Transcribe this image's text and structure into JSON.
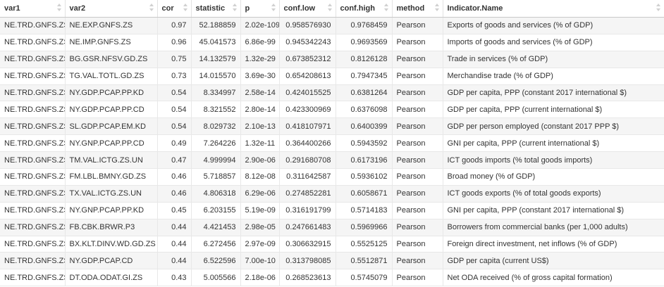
{
  "table": {
    "headers": [
      "var1",
      "var2",
      "cor",
      "statistic",
      "p",
      "conf.low",
      "conf.high",
      "method",
      "Indicator.Name"
    ],
    "rows": [
      [
        "NE.TRD.GNFS.ZS",
        "NE.EXP.GNFS.ZS",
        "0.97",
        "52.188859",
        "2.02e-109",
        "0.958576930",
        "0.9768459",
        "Pearson",
        "Exports of goods and services (% of GDP)"
      ],
      [
        "NE.TRD.GNFS.ZS",
        "NE.IMP.GNFS.ZS",
        "0.96",
        "45.041573",
        "6.86e-99",
        "0.945342243",
        "0.9693569",
        "Pearson",
        "Imports of goods and services (% of GDP)"
      ],
      [
        "NE.TRD.GNFS.ZS",
        "BG.GSR.NFSV.GD.ZS",
        "0.75",
        "14.132579",
        "1.32e-29",
        "0.673852312",
        "0.8126128",
        "Pearson",
        "Trade in services (% of GDP)"
      ],
      [
        "NE.TRD.GNFS.ZS",
        "TG.VAL.TOTL.GD.ZS",
        "0.73",
        "14.015570",
        "3.69e-30",
        "0.654208613",
        "0.7947345",
        "Pearson",
        "Merchandise trade (% of GDP)"
      ],
      [
        "NE.TRD.GNFS.ZS",
        "NY.GDP.PCAP.PP.KD",
        "0.54",
        "8.334997",
        "2.58e-14",
        "0.424015525",
        "0.6381264",
        "Pearson",
        "GDP per capita, PPP (constant 2017 international $)"
      ],
      [
        "NE.TRD.GNFS.ZS",
        "NY.GDP.PCAP.PP.CD",
        "0.54",
        "8.321552",
        "2.80e-14",
        "0.423300969",
        "0.6376098",
        "Pearson",
        "GDP per capita, PPP (current international $)"
      ],
      [
        "NE.TRD.GNFS.ZS",
        "SL.GDP.PCAP.EM.KD",
        "0.54",
        "8.029732",
        "2.10e-13",
        "0.418107971",
        "0.6400399",
        "Pearson",
        "GDP per person employed (constant 2017 PPP $)"
      ],
      [
        "NE.TRD.GNFS.ZS",
        "NY.GNP.PCAP.PP.CD",
        "0.49",
        "7.264226",
        "1.32e-11",
        "0.364400266",
        "0.5943592",
        "Pearson",
        "GNI per capita, PPP (current international $)"
      ],
      [
        "NE.TRD.GNFS.ZS",
        "TM.VAL.ICTG.ZS.UN",
        "0.47",
        "4.999994",
        "2.90e-06",
        "0.291680708",
        "0.6173196",
        "Pearson",
        "ICT goods imports (% total goods imports)"
      ],
      [
        "NE.TRD.GNFS.ZS",
        "FM.LBL.BMNY.GD.ZS",
        "0.46",
        "5.718857",
        "8.12e-08",
        "0.311642587",
        "0.5936102",
        "Pearson",
        "Broad money (% of GDP)"
      ],
      [
        "NE.TRD.GNFS.ZS",
        "TX.VAL.ICTG.ZS.UN",
        "0.46",
        "4.806318",
        "6.29e-06",
        "0.274852281",
        "0.6058671",
        "Pearson",
        "ICT goods exports (% of total goods exports)"
      ],
      [
        "NE.TRD.GNFS.ZS",
        "NY.GNP.PCAP.PP.KD",
        "0.45",
        "6.203155",
        "5.19e-09",
        "0.316191799",
        "0.5714183",
        "Pearson",
        "GNI per capita, PPP (constant 2017 international $)"
      ],
      [
        "NE.TRD.GNFS.ZS",
        "FB.CBK.BRWR.P3",
        "0.44",
        "4.421453",
        "2.98e-05",
        "0.247661483",
        "0.5969966",
        "Pearson",
        "Borrowers from commercial banks (per 1,000 adults)"
      ],
      [
        "NE.TRD.GNFS.ZS",
        "BX.KLT.DINV.WD.GD.ZS",
        "0.44",
        "6.272456",
        "2.97e-09",
        "0.306632915",
        "0.5525125",
        "Pearson",
        "Foreign direct investment, net inflows (% of GDP)"
      ],
      [
        "NE.TRD.GNFS.ZS",
        "NY.GDP.PCAP.CD",
        "0.44",
        "6.522596",
        "7.00e-10",
        "0.313798085",
        "0.5512871",
        "Pearson",
        "GDP per capita (current US$)"
      ],
      [
        "NE.TRD.GNFS.ZS",
        "DT.ODA.ODAT.GI.ZS",
        "0.43",
        "5.005566",
        "2.18e-06",
        "0.268523613",
        "0.5745079",
        "Pearson",
        "Net ODA received (% of gross capital formation)"
      ]
    ]
  }
}
